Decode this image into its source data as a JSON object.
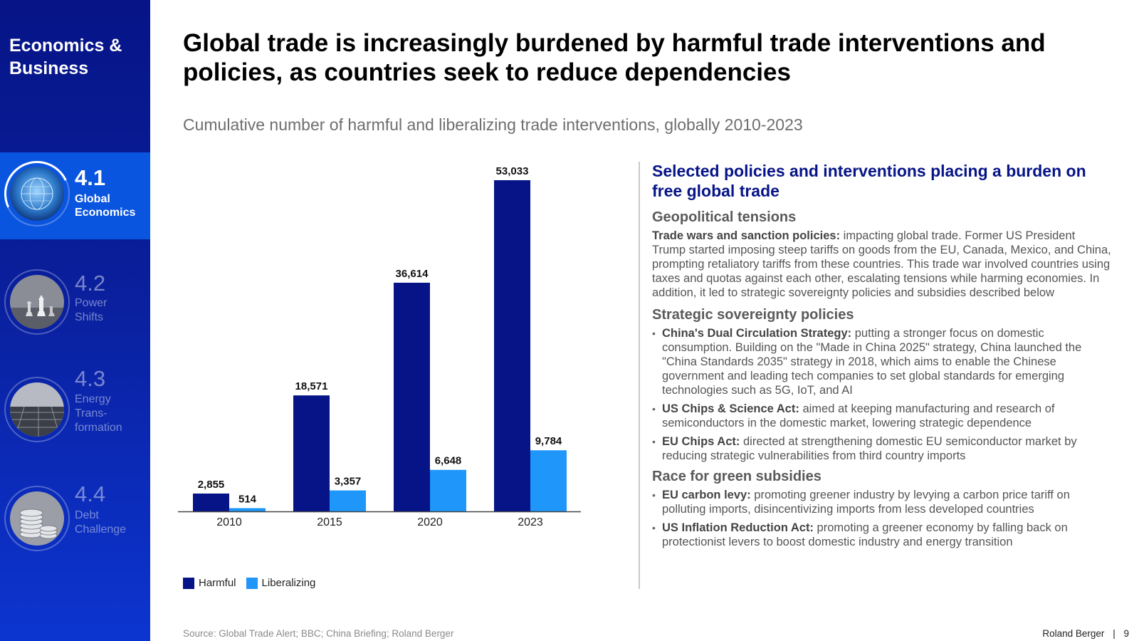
{
  "sidebar": {
    "brand_line1": "Economics &",
    "brand_line2": "Business",
    "items": [
      {
        "num": "4.1",
        "label_lines": [
          "Global",
          "Economics"
        ],
        "active": true,
        "icon": "globe-network-icon"
      },
      {
        "num": "4.2",
        "label_lines": [
          "Power",
          "Shifts"
        ],
        "active": false,
        "icon": "chess-pieces-icon"
      },
      {
        "num": "4.3",
        "label_lines": [
          "Energy",
          "Trans-",
          "formation"
        ],
        "active": false,
        "icon": "solar-field-icon"
      },
      {
        "num": "4.4",
        "label_lines": [
          "Debt",
          "Challenge"
        ],
        "active": false,
        "icon": "coin-stack-icon"
      }
    ]
  },
  "title": "Global trade is increasingly burdened by harmful trade interventions and policies, as countries seek to reduce dependencies",
  "subtitle": "Cumulative number of harmful and liberalizing trade interventions, globally 2010-2023",
  "chart_data": {
    "type": "bar",
    "categories": [
      "2010",
      "2015",
      "2020",
      "2023"
    ],
    "series": [
      {
        "name": "Harmful",
        "values": [
          2855,
          18571,
          36614,
          53033
        ],
        "labels": [
          "2,855",
          "18,571",
          "36,614",
          "53,033"
        ],
        "color": "#061487"
      },
      {
        "name": "Liberalizing",
        "values": [
          514,
          3357,
          6648,
          9784
        ],
        "labels": [
          "514",
          "3,357",
          "6,648",
          "9,784"
        ],
        "color": "#1e96fa"
      }
    ],
    "ylim": [
      0,
      53033
    ],
    "grid": false,
    "legend_position": "bottom-left"
  },
  "panel": {
    "title": "Selected policies and interventions placing a burden on free global trade",
    "sections": [
      {
        "heading": "Geopolitical tensions",
        "paragraph": {
          "bold": "Trade wars and sanction policies:",
          "text": " impacting global trade. Former US President Trump started imposing steep tariffs on goods from the EU, Canada, Mexico, and China, prompting retaliatory tariffs from these countries. This trade war involved countries using taxes and quotas against each other, escalating tensions while harming economies. In addition, it led to strategic sovereignty policies and subsidies described below"
        }
      },
      {
        "heading": "Strategic sovereignty policies",
        "bullets": [
          {
            "bold": "China's Dual Circulation Strategy:",
            "text": " putting a stronger focus on domestic consumption. Building on the \"Made in China 2025\" strategy, China launched the \"China Standards 2035\" strategy in 2018, which aims to enable the Chinese government and leading tech companies to set global standards for emerging technologies such as 5G, IoT, and AI"
          },
          {
            "bold": "US Chips & Science Act:",
            "text": " aimed at keeping manufacturing and research of semiconductors in the domestic market, lowering strategic dependence"
          },
          {
            "bold": "EU Chips Act:",
            "text": " directed at strengthening domestic EU semiconductor market by reducing strategic vulnerabilities from third country imports"
          }
        ]
      },
      {
        "heading": "Race for green subsidies",
        "bullets": [
          {
            "bold": "EU carbon levy:",
            "text": " promoting greener industry by levying a carbon price tariff on polluting imports, disincentivizing imports from less developed countries"
          },
          {
            "bold": "US Inflation Reduction Act:",
            "text": " promoting a greener economy by falling back on protectionist levers to boost domestic industry and energy transition"
          }
        ]
      }
    ]
  },
  "source": "Source: Global Trade Alert; BBC; China Briefing; Roland Berger",
  "footer": {
    "company": "Roland Berger",
    "separator": "|",
    "page": "9"
  }
}
